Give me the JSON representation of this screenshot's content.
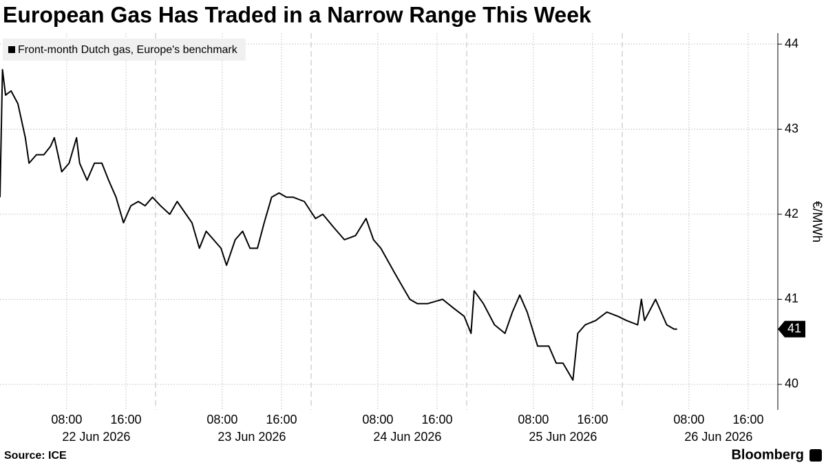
{
  "chart_data": {
    "type": "line",
    "title": "European Gas Has Traded in a Narrow Range This Week",
    "y_label": "€/MWh",
    "source": "Source: ICE",
    "brand": "Bloomberg",
    "legend_position": "upper left",
    "grid": true,
    "sessions": [
      [
        "2026-06-21 23:00",
        "2026-06-22 20:00"
      ],
      [
        "2026-06-22 23:00",
        "2026-06-23 20:00"
      ],
      [
        "2026-06-23 23:00",
        "2026-06-24 20:00"
      ],
      [
        "2026-06-24 23:00",
        "2026-06-25 20:00"
      ],
      [
        "2026-06-25 23:00",
        "2026-06-26 20:00"
      ]
    ],
    "ylim": [
      39.7,
      44.13
    ],
    "yticks": [
      40,
      41,
      42,
      43,
      44
    ],
    "xticks": [
      {
        "value": "2026-06-22 08:00",
        "label": "08:00"
      },
      {
        "value": "2026-06-22 16:00",
        "label": "16:00"
      },
      {
        "value": "2026-06-23 08:00",
        "label": "08:00"
      },
      {
        "value": "2026-06-23 16:00",
        "label": "16:00"
      },
      {
        "value": "2026-06-24 08:00",
        "label": "08:00"
      },
      {
        "value": "2026-06-24 16:00",
        "label": "16:00"
      },
      {
        "value": "2026-06-25 08:00",
        "label": "08:00"
      },
      {
        "value": "2026-06-25 16:00",
        "label": "16:00"
      },
      {
        "value": "2026-06-26 08:00",
        "label": "08:00"
      },
      {
        "value": "2026-06-26 16:00",
        "label": "16:00"
      }
    ],
    "date_labels": [
      {
        "value": "2026-06-22 12:00",
        "label": "22 Jun 2026"
      },
      {
        "value": "2026-06-23 12:00",
        "label": "23 Jun 2026"
      },
      {
        "value": "2026-06-24 12:00",
        "label": "24 Jun 2026"
      },
      {
        "value": "2026-06-25 12:00",
        "label": "25 Jun 2026"
      },
      {
        "value": "2026-06-26 12:00",
        "label": "26 Jun 2026"
      }
    ],
    "last_value_label": "41",
    "x": [
      "2026-06-21 23:00",
      "2026-06-21 23:20",
      "2026-06-21 23:45",
      "2026-06-22 00:30",
      "2026-06-22 01:25",
      "2026-06-22 02:25",
      "2026-06-22 02:55",
      "2026-06-22 03:55",
      "2026-06-22 04:55",
      "2026-06-22 05:50",
      "2026-06-22 06:20",
      "2026-06-22 07:20",
      "2026-06-22 08:20",
      "2026-06-22 09:20",
      "2026-06-22 09:45",
      "2026-06-22 10:45",
      "2026-06-22 11:45",
      "2026-06-22 12:45",
      "2026-06-22 13:40",
      "2026-06-22 14:40",
      "2026-06-22 15:40",
      "2026-06-22 16:40",
      "2026-06-22 17:40",
      "2026-06-22 18:35",
      "2026-06-22 19:35",
      "2026-06-22 23:40",
      "2026-06-23 00:55",
      "2026-06-23 01:55",
      "2026-06-23 03:55",
      "2026-06-23 04:55",
      "2026-06-23 05:50",
      "2026-06-23 06:50",
      "2026-06-23 07:50",
      "2026-06-23 08:35",
      "2026-06-23 09:45",
      "2026-06-23 10:45",
      "2026-06-23 11:45",
      "2026-06-23 12:45",
      "2026-06-23 13:40",
      "2026-06-23 14:40",
      "2026-06-23 15:40",
      "2026-06-23 16:40",
      "2026-06-23 17:35",
      "2026-06-23 19:05",
      "2026-06-23 23:35",
      "2026-06-24 00:35",
      "2026-06-24 02:00",
      "2026-06-24 03:30",
      "2026-06-24 05:00",
      "2026-06-24 06:25",
      "2026-06-24 07:25",
      "2026-06-24 08:25",
      "2026-06-24 10:20",
      "2026-06-24 11:20",
      "2026-06-24 12:20",
      "2026-06-24 13:20",
      "2026-06-24 14:45",
      "2026-06-24 16:45",
      "2026-06-24 18:10",
      "2026-06-24 19:40",
      "2026-06-24 23:35",
      "2026-06-25 00:00",
      "2026-06-25 01:15",
      "2026-06-25 02:45",
      "2026-06-25 04:10",
      "2026-06-25 05:10",
      "2026-06-25 06:10",
      "2026-06-25 07:10",
      "2026-06-25 08:35",
      "2026-06-25 10:05",
      "2026-06-25 11:05",
      "2026-06-25 12:00",
      "2026-06-25 13:20",
      "2026-06-25 14:00",
      "2026-06-25 15:00",
      "2026-06-25 16:25",
      "2026-06-25 17:55",
      "2026-06-25 19:25",
      "2026-06-25 23:35",
      "2026-06-26 01:05",
      "2026-06-26 01:35",
      "2026-06-26 02:00",
      "2026-06-26 03:30",
      "2026-06-26 05:00",
      "2026-06-26 06:00",
      "2026-06-26 06:25"
    ],
    "series": [
      {
        "name": "Front-month Dutch gas, Europe's benchmark",
        "color": "#000000",
        "values": [
          42.2,
          43.7,
          43.4,
          43.45,
          43.3,
          42.9,
          42.6,
          42.7,
          42.7,
          42.8,
          42.9,
          42.5,
          42.6,
          42.9,
          42.6,
          42.4,
          42.6,
          42.6,
          42.4,
          42.2,
          41.9,
          42.1,
          42.15,
          42.1,
          42.2,
          42.1,
          42.0,
          42.15,
          41.9,
          41.6,
          41.8,
          41.7,
          41.6,
          41.4,
          41.7,
          41.8,
          41.6,
          41.6,
          41.9,
          42.2,
          42.25,
          42.2,
          42.2,
          42.15,
          41.95,
          42.0,
          41.85,
          41.7,
          41.75,
          41.95,
          41.7,
          41.6,
          41.3,
          41.15,
          41.0,
          40.95,
          40.95,
          41.0,
          40.9,
          40.8,
          40.6,
          41.1,
          40.95,
          40.7,
          40.6,
          40.85,
          41.05,
          40.85,
          40.45,
          40.45,
          40.25,
          40.25,
          40.05,
          40.6,
          40.7,
          40.75,
          40.85,
          40.8,
          40.75,
          40.7,
          41.0,
          40.75,
          41.0,
          40.7,
          40.65,
          40.65
        ]
      }
    ]
  }
}
